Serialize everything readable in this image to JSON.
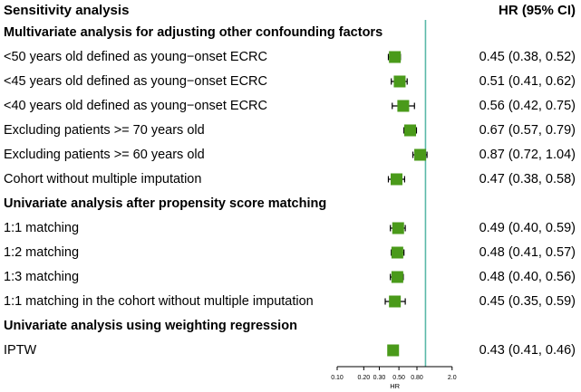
{
  "header": {
    "left_title": "Sensitivity analysis",
    "right_title": "HR (95% CI)"
  },
  "colors": {
    "marker": "#4a9a1a",
    "reference_line": "#5ab8a8",
    "axis": "#000000"
  },
  "sections": [
    {
      "title": "Multivariate analysis for adjusting other confounding factors",
      "rows": [
        {
          "label": "<50 years old defined as young−onset ECRC",
          "hr_text": "0.45 (0.38, 0.52)"
        },
        {
          "label": "<45 years old defined as young−onset ECRC",
          "hr_text": "0.51 (0.41, 0.62)"
        },
        {
          "label": "<40 years old defined as young−onset ECRC",
          "hr_text": "0.56 (0.42, 0.75)"
        },
        {
          "label": "Excluding patients >= 70 years old",
          "hr_text": "0.67 (0.57, 0.79)"
        },
        {
          "label": "Excluding patients >= 60 years old",
          "hr_text": "0.87 (0.72, 1.04)"
        },
        {
          "label": "Cohort without multiple imputation",
          "hr_text": "0.47 (0.38, 0.58)"
        }
      ]
    },
    {
      "title": "Univariate analysis after propensity score matching",
      "rows": [
        {
          "label": "1:1 matching",
          "hr_text": "0.49 (0.40, 0.59)"
        },
        {
          "label": "1:2 matching",
          "hr_text": "0.48 (0.41, 0.57)"
        },
        {
          "label": "1:3 matching",
          "hr_text": "0.48 (0.40, 0.56)"
        },
        {
          "label": "1:1 matching in the cohort without multiple imputation",
          "hr_text": "0.45 (0.35, 0.59)"
        }
      ]
    },
    {
      "title": "Univariate analysis using weighting regression",
      "rows": [
        {
          "label": "IPTW",
          "hr_text": "0.43 (0.41, 0.46)"
        }
      ]
    }
  ],
  "chart_data": {
    "type": "forest",
    "xscale": "log",
    "xlabel": "HR",
    "xlim": [
      0.1,
      2.0
    ],
    "xticks": [
      0.1,
      0.2,
      0.3,
      0.5,
      0.8,
      2.0
    ],
    "xtick_labels": [
      "0.10",
      "0.20",
      "0.30",
      "0.50",
      "0.80",
      "2.0"
    ],
    "reference_line": 1.0,
    "series": [
      {
        "name": "<50 years old defined as young−onset ECRC",
        "hr": 0.45,
        "lower": 0.38,
        "upper": 0.52
      },
      {
        "name": "<45 years old defined as young−onset ECRC",
        "hr": 0.51,
        "lower": 0.41,
        "upper": 0.62
      },
      {
        "name": "<40 years old defined as young−onset ECRC",
        "hr": 0.56,
        "lower": 0.42,
        "upper": 0.75
      },
      {
        "name": "Excluding patients >= 70 years old",
        "hr": 0.67,
        "lower": 0.57,
        "upper": 0.79
      },
      {
        "name": "Excluding patients >= 60 years old",
        "hr": 0.87,
        "lower": 0.72,
        "upper": 1.04
      },
      {
        "name": "Cohort without multiple imputation",
        "hr": 0.47,
        "lower": 0.38,
        "upper": 0.58
      },
      {
        "name": "1:1 matching",
        "hr": 0.49,
        "lower": 0.4,
        "upper": 0.59
      },
      {
        "name": "1:2 matching",
        "hr": 0.48,
        "lower": 0.41,
        "upper": 0.57
      },
      {
        "name": "1:3 matching",
        "hr": 0.48,
        "lower": 0.4,
        "upper": 0.56
      },
      {
        "name": "1:1 matching in the cohort without multiple imputation",
        "hr": 0.45,
        "lower": 0.35,
        "upper": 0.59
      },
      {
        "name": "IPTW",
        "hr": 0.43,
        "lower": 0.41,
        "upper": 0.46
      }
    ]
  }
}
